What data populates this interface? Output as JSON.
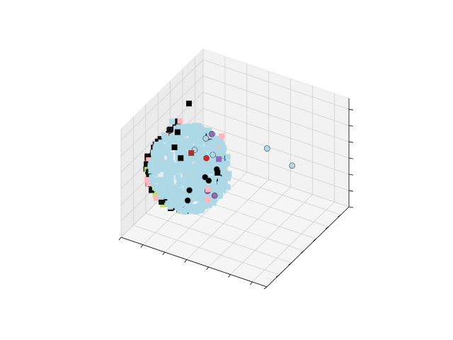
{
  "chart_data": {
    "type": "scatter",
    "projection": "3d",
    "title": "",
    "xlabel": "",
    "ylabel": "",
    "zlabel": "",
    "tick_labels_visible": false,
    "grid": true,
    "legend": "none",
    "axis_range": {
      "x": [
        0,
        1
      ],
      "y": [
        0,
        1
      ],
      "z": [
        0,
        1
      ]
    },
    "series": [
      {
        "marker": "circle",
        "color": "#add8e6",
        "points": [
          {
            "x": 0.72,
            "y": 0.5,
            "z": 0.78
          },
          {
            "x": 0.92,
            "y": 0.45,
            "z": 0.75
          },
          {
            "x": 0.3,
            "y": 0.5,
            "z": 0.68
          },
          {
            "x": 0.28,
            "y": 0.4,
            "z": 0.64
          },
          {
            "x": 0.32,
            "y": 0.55,
            "z": 0.5
          }
        ]
      },
      {
        "marker": "circle",
        "color": "#000000",
        "points": [
          {
            "x": 0.33,
            "y": 0.58,
            "z": 0.35
          },
          {
            "x": 0.32,
            "y": 0.5,
            "z": 0.3
          },
          {
            "x": 0.34,
            "y": 0.42,
            "z": 0.4
          },
          {
            "x": 0.3,
            "y": 0.3,
            "z": 0.35
          },
          {
            "x": 0.26,
            "y": 0.35,
            "z": 0.2
          }
        ]
      },
      {
        "marker": "circle",
        "color": "#d62728",
        "points": [
          {
            "x": 0.36,
            "y": 0.4,
            "z": 0.6
          }
        ]
      },
      {
        "marker": "circle",
        "color": "#9467bd",
        "points": [
          {
            "x": 0.33,
            "y": 0.52,
            "z": 0.72
          },
          {
            "x": 0.36,
            "y": 0.5,
            "z": 0.18
          },
          {
            "x": 0.34,
            "y": 0.45,
            "z": 0.25
          }
        ]
      },
      {
        "marker": "square",
        "color": "#000000",
        "points": [
          {
            "x": 0.05,
            "y": 0.6,
            "z": 0.55
          },
          {
            "x": 0.04,
            "y": 0.58,
            "z": 0.42
          },
          {
            "x": 0.06,
            "y": 0.62,
            "z": 0.3
          },
          {
            "x": 0.1,
            "y": 0.65,
            "z": 0.8
          },
          {
            "x": 0.38,
            "y": 0.5,
            "z": 0.4
          },
          {
            "x": 0.08,
            "y": 0.55,
            "z": 0.7
          }
        ]
      },
      {
        "marker": "square",
        "color": "#ffb6c1",
        "points": [
          {
            "x": 0.18,
            "y": 0.4,
            "z": 0.86
          },
          {
            "x": 0.38,
            "y": 0.55,
            "z": 0.7
          },
          {
            "x": 0.26,
            "y": 0.6,
            "z": 0.12
          },
          {
            "x": 0.3,
            "y": 0.52,
            "z": 0.1
          }
        ]
      },
      {
        "marker": "square",
        "color": "#9467bd",
        "points": [
          {
            "x": 0.4,
            "y": 0.48,
            "z": 0.55
          }
        ]
      },
      {
        "marker": "square",
        "color": "#add8e6",
        "points": [
          {
            "x": 0.45,
            "y": 0.5,
            "z": 0.3
          },
          {
            "x": 0.08,
            "y": 0.48,
            "z": 0.75
          },
          {
            "x": 0.35,
            "y": 0.4,
            "z": 0.15
          }
        ]
      },
      {
        "marker": "square",
        "color": "#a83232",
        "points": [
          {
            "x": 0.2,
            "y": 0.5,
            "z": 0.5
          }
        ]
      }
    ]
  }
}
